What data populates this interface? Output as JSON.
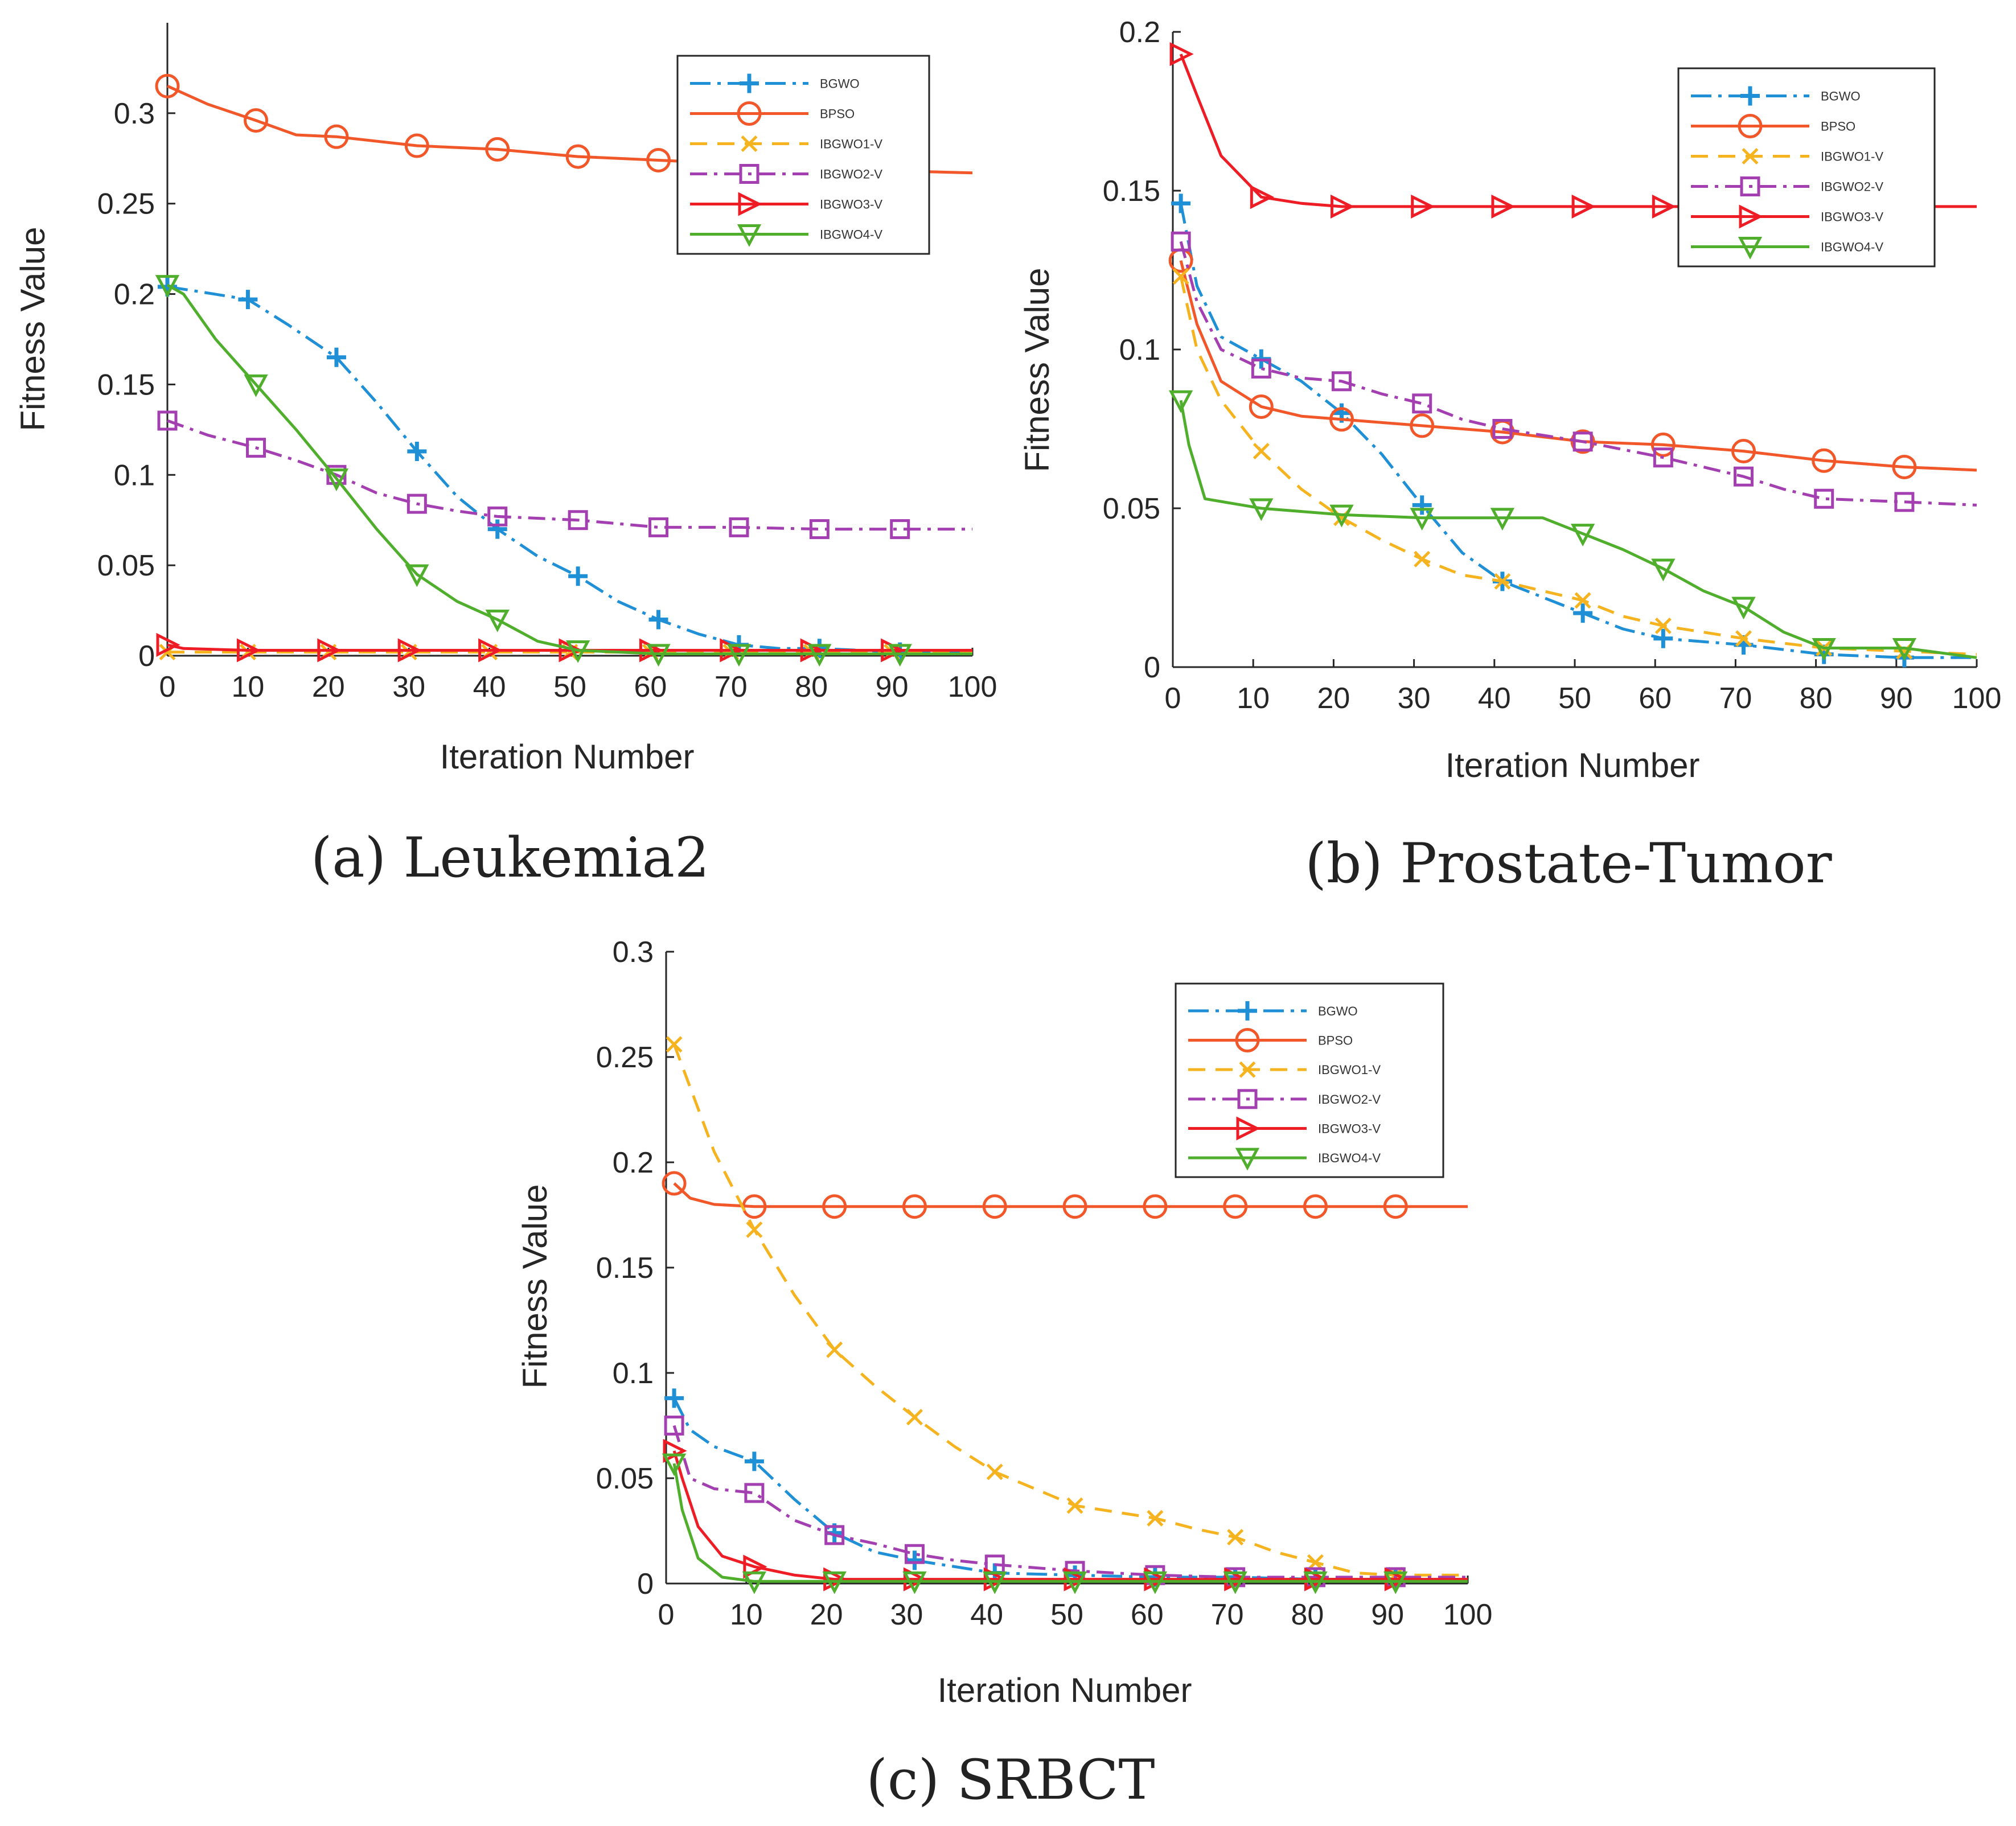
{
  "figure": {
    "series_names": [
      "BGWO",
      "BPSO",
      "IBGWO1-V",
      "IBGWO2-V",
      "IBGWO3-V",
      "IBGWO4-V"
    ],
    "series_colors": {
      "BGWO": "#1f8fd6",
      "BPSO": "#f2572a",
      "IBGWO1-V": "#f5b41f",
      "IBGWO2-V": "#a33fb0",
      "IBGWO3-V": "#ee1c24",
      "IBGWO4-V": "#4fae2b"
    }
  },
  "chart_data": [
    {
      "type": "line",
      "caption": "(a) Leukemia2",
      "xlabel": "Iteration Number",
      "ylabel": "Fitness Value",
      "xlim": [
        0,
        100
      ],
      "ylim": [
        0,
        0.35
      ],
      "xticks": [
        0,
        10,
        20,
        30,
        40,
        50,
        60,
        70,
        80,
        90,
        100
      ],
      "yticks": [
        0,
        0.05,
        0.1,
        0.15,
        0.2,
        0.25,
        0.3
      ],
      "ytick_labels": [
        "0",
        "0.05",
        "0.1",
        "0.15",
        "0.2",
        "0.25",
        "0.3"
      ],
      "xtick_labels": [
        "0",
        "10",
        "20",
        "30",
        "40",
        "50",
        "60",
        "70",
        "80",
        "90",
        "100"
      ],
      "legend": [
        "BGWO",
        "BPSO",
        "IBGWO1-V",
        "IBGWO2-V",
        "IBGWO3-V",
        "IBGWO4-V"
      ],
      "legend_position": "top-right",
      "series": [
        {
          "name": "BGWO",
          "x": [
            0,
            3,
            10,
            15,
            21,
            26,
            31,
            36,
            41,
            46,
            51,
            56,
            61,
            66,
            71,
            76,
            81,
            91,
            100
          ],
          "y": [
            0.204,
            0.202,
            0.197,
            0.183,
            0.165,
            0.14,
            0.113,
            0.088,
            0.07,
            0.055,
            0.044,
            0.03,
            0.02,
            0.012,
            0.006,
            0.004,
            0.004,
            0.002,
            0.002
          ]
        },
        {
          "name": "BPSO",
          "x": [
            0,
            5,
            11,
            16,
            21,
            31,
            41,
            51,
            61,
            71,
            81,
            91,
            100
          ],
          "y": [
            0.315,
            0.305,
            0.296,
            0.288,
            0.287,
            0.282,
            0.28,
            0.276,
            0.274,
            0.272,
            0.27,
            0.268,
            0.267
          ]
        },
        {
          "name": "IBGWO1-V",
          "x": [
            0,
            10,
            20,
            30,
            40,
            50,
            60,
            70,
            80,
            90,
            100
          ],
          "y": [
            0.002,
            0.002,
            0.002,
            0.002,
            0.002,
            0.002,
            0.002,
            0.002,
            0.002,
            0.002,
            0.002
          ]
        },
        {
          "name": "IBGWO2-V",
          "x": [
            0,
            5,
            11,
            16,
            21,
            26,
            31,
            36,
            41,
            51,
            61,
            71,
            81,
            91,
            100
          ],
          "y": [
            0.13,
            0.122,
            0.115,
            0.108,
            0.1,
            0.09,
            0.084,
            0.08,
            0.077,
            0.075,
            0.071,
            0.071,
            0.07,
            0.07,
            0.07
          ]
        },
        {
          "name": "IBGWO3-V",
          "x": [
            0,
            2,
            10,
            20,
            30,
            40,
            50,
            60,
            70,
            80,
            90,
            100
          ],
          "y": [
            0.006,
            0.004,
            0.003,
            0.003,
            0.003,
            0.003,
            0.003,
            0.003,
            0.003,
            0.003,
            0.003,
            0.003
          ]
        },
        {
          "name": "IBGWO4-V",
          "x": [
            0,
            2,
            6,
            11,
            16,
            21,
            26,
            31,
            36,
            41,
            46,
            51,
            61,
            71,
            81,
            91,
            100
          ],
          "y": [
            0.205,
            0.2,
            0.175,
            0.15,
            0.125,
            0.098,
            0.07,
            0.045,
            0.03,
            0.02,
            0.008,
            0.003,
            0.001,
            0.001,
            0.001,
            0.001,
            0.001
          ]
        }
      ]
    },
    {
      "type": "line",
      "caption": "(b) Prostate-Tumor",
      "xlabel": "Iteration Number",
      "ylabel": "Fitness Value",
      "xlim": [
        0,
        100
      ],
      "ylim": [
        0,
        0.2
      ],
      "xticks": [
        0,
        10,
        20,
        30,
        40,
        50,
        60,
        70,
        80,
        90,
        100
      ],
      "yticks": [
        0,
        0.05,
        0.1,
        0.15,
        0.2
      ],
      "ytick_labels": [
        "0",
        "0.05",
        "0.1",
        "0.15",
        "0.2"
      ],
      "xtick_labels": [
        "0",
        "10",
        "20",
        "30",
        "40",
        "50",
        "60",
        "70",
        "80",
        "90",
        "100"
      ],
      "legend": [
        "BGWO",
        "BPSO",
        "IBGWO1-V",
        "IBGWO2-V",
        "IBGWO3-V",
        "IBGWO4-V"
      ],
      "legend_position": "top-right",
      "series": [
        {
          "name": "BGWO",
          "x": [
            1,
            3,
            6,
            11,
            16,
            21,
            26,
            31,
            36,
            41,
            46,
            51,
            56,
            61,
            71,
            81,
            91,
            100
          ],
          "y": [
            0.146,
            0.12,
            0.104,
            0.097,
            0.09,
            0.08,
            0.067,
            0.051,
            0.036,
            0.027,
            0.022,
            0.017,
            0.012,
            0.009,
            0.007,
            0.004,
            0.003,
            0.003
          ]
        },
        {
          "name": "BPSO",
          "x": [
            1,
            3,
            6,
            11,
            16,
            21,
            31,
            41,
            51,
            61,
            71,
            81,
            91,
            100
          ],
          "y": [
            0.128,
            0.108,
            0.09,
            0.082,
            0.079,
            0.078,
            0.076,
            0.074,
            0.071,
            0.07,
            0.068,
            0.065,
            0.063,
            0.062
          ]
        },
        {
          "name": "IBGWO1-V",
          "x": [
            1,
            3,
            6,
            11,
            16,
            21,
            26,
            31,
            36,
            41,
            46,
            51,
            56,
            61,
            71,
            81,
            91,
            100
          ],
          "y": [
            0.123,
            0.1,
            0.084,
            0.068,
            0.056,
            0.047,
            0.04,
            0.034,
            0.029,
            0.027,
            0.024,
            0.021,
            0.016,
            0.013,
            0.009,
            0.006,
            0.005,
            0.004
          ]
        },
        {
          "name": "IBGWO2-V",
          "x": [
            1,
            3,
            6,
            11,
            16,
            21,
            26,
            31,
            36,
            41,
            51,
            61,
            66,
            71,
            76,
            81,
            91,
            100
          ],
          "y": [
            0.134,
            0.115,
            0.1,
            0.094,
            0.091,
            0.09,
            0.086,
            0.083,
            0.078,
            0.075,
            0.071,
            0.066,
            0.063,
            0.06,
            0.056,
            0.053,
            0.052,
            0.051
          ]
        },
        {
          "name": "IBGWO3-V",
          "x": [
            1,
            3,
            6,
            11,
            16,
            21,
            31,
            41,
            51,
            61,
            71,
            81,
            91,
            100
          ],
          "y": [
            0.193,
            0.18,
            0.161,
            0.148,
            0.146,
            0.145,
            0.145,
            0.145,
            0.145,
            0.145,
            0.145,
            0.145,
            0.145,
            0.145
          ]
        },
        {
          "name": "IBGWO4-V",
          "x": [
            1,
            2,
            4,
            11,
            21,
            31,
            41,
            46,
            51,
            56,
            61,
            66,
            71,
            76,
            81,
            91,
            100
          ],
          "y": [
            0.084,
            0.07,
            0.053,
            0.05,
            0.048,
            0.047,
            0.047,
            0.047,
            0.042,
            0.037,
            0.031,
            0.024,
            0.019,
            0.011,
            0.006,
            0.006,
            0.003
          ]
        }
      ]
    },
    {
      "type": "line",
      "caption": "(c) SRBCT",
      "xlabel": "Iteration Number",
      "ylabel": "Fitness Value",
      "xlim": [
        0,
        100
      ],
      "ylim": [
        0,
        0.3
      ],
      "xticks": [
        0,
        10,
        20,
        30,
        40,
        50,
        60,
        70,
        80,
        90,
        100
      ],
      "yticks": [
        0,
        0.05,
        0.1,
        0.15,
        0.2,
        0.25,
        0.3
      ],
      "ytick_labels": [
        "0",
        "0.05",
        "0.1",
        "0.15",
        "0.2",
        "0.25",
        "0.3"
      ],
      "xtick_labels": [
        "0",
        "10",
        "20",
        "30",
        "40",
        "50",
        "60",
        "70",
        "80",
        "90",
        "100"
      ],
      "legend": [
        "BGWO",
        "BPSO",
        "IBGWO1-V",
        "IBGWO2-V",
        "IBGWO3-V",
        "IBGWO4-V"
      ],
      "legend_position": "top-right",
      "series": [
        {
          "name": "BGWO",
          "x": [
            1,
            3,
            6,
            11,
            16,
            21,
            26,
            31,
            36,
            41,
            51,
            61,
            71,
            81,
            91,
            100
          ],
          "y": [
            0.088,
            0.073,
            0.065,
            0.058,
            0.04,
            0.024,
            0.015,
            0.011,
            0.008,
            0.005,
            0.004,
            0.003,
            0.003,
            0.002,
            0.002,
            0.002
          ]
        },
        {
          "name": "BPSO",
          "x": [
            1,
            3,
            6,
            11,
            21,
            31,
            41,
            51,
            61,
            71,
            81,
            91,
            100
          ],
          "y": [
            0.19,
            0.183,
            0.18,
            0.179,
            0.179,
            0.179,
            0.179,
            0.179,
            0.179,
            0.179,
            0.179,
            0.179,
            0.179
          ]
        },
        {
          "name": "IBGWO1-V",
          "x": [
            1,
            6,
            11,
            16,
            21,
            26,
            31,
            36,
            41,
            46,
            51,
            56,
            61,
            66,
            71,
            76,
            81,
            86,
            91,
            100
          ],
          "y": [
            0.256,
            0.205,
            0.168,
            0.137,
            0.111,
            0.094,
            0.079,
            0.065,
            0.053,
            0.045,
            0.037,
            0.034,
            0.031,
            0.026,
            0.022,
            0.015,
            0.01,
            0.005,
            0.004,
            0.004
          ]
        },
        {
          "name": "IBGWO2-V",
          "x": [
            1,
            3,
            6,
            11,
            16,
            21,
            26,
            31,
            36,
            41,
            51,
            61,
            71,
            81,
            91,
            100
          ],
          "y": [
            0.075,
            0.05,
            0.045,
            0.043,
            0.03,
            0.023,
            0.019,
            0.014,
            0.011,
            0.009,
            0.006,
            0.004,
            0.003,
            0.003,
            0.003,
            0.003
          ]
        },
        {
          "name": "IBGWO3-V",
          "x": [
            1,
            2,
            4,
            7,
            11,
            16,
            21,
            31,
            41,
            51,
            61,
            71,
            81,
            91,
            100
          ],
          "y": [
            0.063,
            0.05,
            0.027,
            0.013,
            0.008,
            0.004,
            0.002,
            0.002,
            0.002,
            0.002,
            0.002,
            0.002,
            0.002,
            0.002,
            0.002
          ]
        },
        {
          "name": "IBGWO4-V",
          "x": [
            1,
            2,
            4,
            7,
            11,
            21,
            31,
            41,
            51,
            61,
            71,
            81,
            91,
            100
          ],
          "y": [
            0.057,
            0.035,
            0.012,
            0.003,
            0.001,
            0.001,
            0.001,
            0.001,
            0.001,
            0.001,
            0.001,
            0.001,
            0.001,
            0.001
          ]
        }
      ]
    }
  ]
}
